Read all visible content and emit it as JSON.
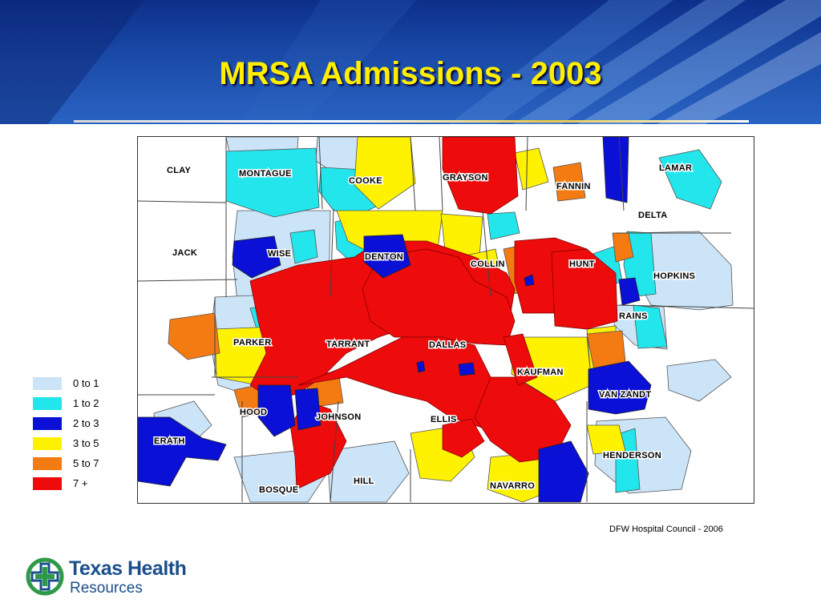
{
  "slide": {
    "title": "MRSA Admissions - 2003",
    "source_note": "DFW Hospital Council - 2006"
  },
  "map": {
    "counties": [
      {
        "name": "CLAY",
        "level": "0 to 1"
      },
      {
        "name": "MONTAGUE",
        "level": "1 to 2"
      },
      {
        "name": "COOKE",
        "level": "1 to 2"
      },
      {
        "name": "GRAYSON",
        "level": "7 +"
      },
      {
        "name": "FANNIN",
        "level": "5 to 7"
      },
      {
        "name": "LAMAR",
        "level": "1 to 2"
      },
      {
        "name": "DELTA",
        "level": "0 to 1"
      },
      {
        "name": "JACK",
        "level": "0 to 1"
      },
      {
        "name": "WISE",
        "level": "2 to 3"
      },
      {
        "name": "DENTON",
        "level": "2 to 3"
      },
      {
        "name": "COLLIN",
        "level": "7 +"
      },
      {
        "name": "HUNT",
        "level": "7 +"
      },
      {
        "name": "HOPKINS",
        "level": "0 to 1"
      },
      {
        "name": "RAINS",
        "level": "0 to 1"
      },
      {
        "name": "PARKER",
        "level": "3 to 5"
      },
      {
        "name": "TARRANT",
        "level": "7 +"
      },
      {
        "name": "DALLAS",
        "level": "7 +"
      },
      {
        "name": "KAUFMAN",
        "level": "3 to 5"
      },
      {
        "name": "VAN ZANDT",
        "level": "2 to 3"
      },
      {
        "name": "HOOD",
        "level": "2 to 3"
      },
      {
        "name": "JOHNSON",
        "level": "7 +"
      },
      {
        "name": "ELLIS",
        "level": "7 +"
      },
      {
        "name": "ERATH",
        "level": "2 to 3"
      },
      {
        "name": "HENDERSON",
        "level": "0 to 1"
      },
      {
        "name": "BOSQUE",
        "level": "0 to 1"
      },
      {
        "name": "HILL",
        "level": "0 to 1"
      },
      {
        "name": "NAVARRO",
        "level": "3 to 5"
      }
    ]
  },
  "legend": {
    "items": [
      {
        "label": "0 to 1",
        "color": "#cce4f7"
      },
      {
        "label": "1 to 2",
        "color": "#22e6ec"
      },
      {
        "label": "2 to 3",
        "color": "#0a10d6"
      },
      {
        "label": "3 to 5",
        "color": "#fff200"
      },
      {
        "label": "5 to 7",
        "color": "#f47a12"
      },
      {
        "label": "7 +",
        "color": "#ee0b0b"
      }
    ]
  },
  "logo": {
    "name": "Texas Health",
    "sub": "Resources",
    "colors": {
      "green": "#2e9a48",
      "blue": "#1a4f8b"
    }
  },
  "theme": {
    "title_color": "#ffee00",
    "header_blue": "#1a4aa8",
    "boundary_color": "#555555"
  }
}
